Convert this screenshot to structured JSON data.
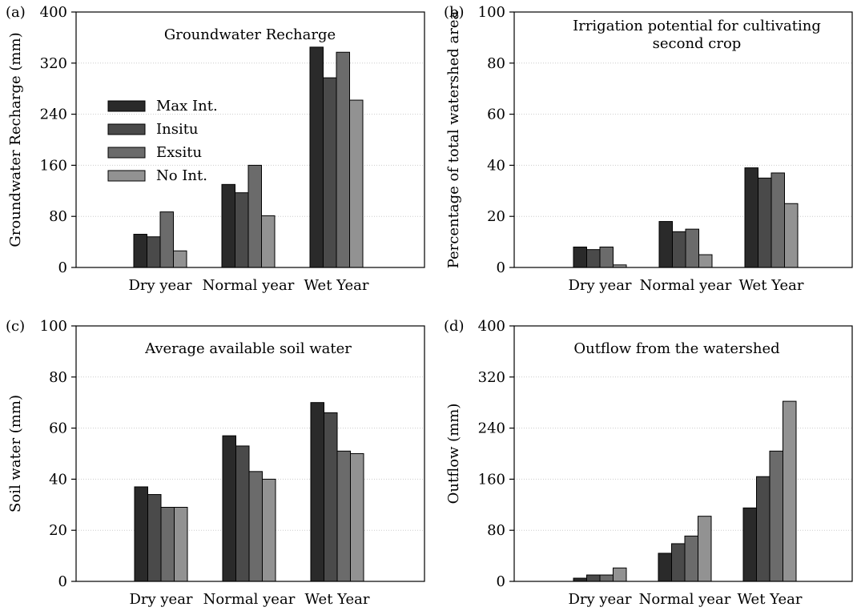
{
  "chart_data": [
    {
      "panel_label": "(a)",
      "type": "bar",
      "title": "Groundwater Recharge",
      "xlabel": "",
      "ylabel": "Groundwater Recharge (mm)",
      "ylim": [
        0,
        400
      ],
      "yticks": [
        0,
        80,
        160,
        240,
        320,
        400
      ],
      "grid": true,
      "legend": "upper-left",
      "categories": [
        "Dry year",
        "Normal year",
        "Wet Year"
      ],
      "series": [
        {
          "name": "Max Int.",
          "values": [
            52,
            130,
            345
          ]
        },
        {
          "name": "Insitu",
          "values": [
            48,
            117,
            297
          ]
        },
        {
          "name": "Exsitu",
          "values": [
            87,
            160,
            337
          ]
        },
        {
          "name": "No Int.",
          "values": [
            26,
            81,
            262
          ]
        }
      ]
    },
    {
      "panel_label": "(b)",
      "type": "bar",
      "title": "Irrigation potential for cultivating second crop",
      "xlabel": "",
      "ylabel": "Percentage of total watershed area",
      "ylim": [
        0,
        100
      ],
      "yticks": [
        0,
        20,
        40,
        60,
        80,
        100
      ],
      "grid": true,
      "legend": "none",
      "categories": [
        "Dry year",
        "Normal year",
        "Wet Year"
      ],
      "series": [
        {
          "name": "Max Int.",
          "values": [
            8,
            18,
            39
          ]
        },
        {
          "name": "Insitu",
          "values": [
            7,
            14,
            35
          ]
        },
        {
          "name": "Exsitu",
          "values": [
            8,
            15,
            37
          ]
        },
        {
          "name": "No Int.",
          "values": [
            1,
            5,
            25
          ]
        }
      ]
    },
    {
      "panel_label": "(c)",
      "type": "bar",
      "title": "Average available soil water",
      "xlabel": "",
      "ylabel": "Soil water (mm)",
      "ylim": [
        0,
        100
      ],
      "yticks": [
        0,
        20,
        40,
        60,
        80,
        100
      ],
      "grid": true,
      "legend": "none",
      "categories": [
        "Dry year",
        "Normal year",
        "Wet Year"
      ],
      "series": [
        {
          "name": "Max Int.",
          "values": [
            37,
            57,
            70
          ]
        },
        {
          "name": "Insitu",
          "values": [
            34,
            53,
            66
          ]
        },
        {
          "name": "Exsitu",
          "values": [
            29,
            43,
            51
          ]
        },
        {
          "name": "No Int.",
          "values": [
            29,
            40,
            50
          ]
        }
      ]
    },
    {
      "panel_label": "(d)",
      "type": "bar",
      "title": "Outflow from the watershed",
      "xlabel": "",
      "ylabel": "Outflow (mm)",
      "ylim": [
        0,
        400
      ],
      "yticks": [
        0,
        80,
        160,
        240,
        320,
        400
      ],
      "grid": true,
      "legend": "none",
      "categories": [
        "Dry year",
        "Normal year",
        "Wet Year"
      ],
      "series": [
        {
          "name": "Max Int.",
          "values": [
            5,
            44,
            115
          ]
        },
        {
          "name": "Insitu",
          "values": [
            10,
            59,
            164
          ]
        },
        {
          "name": "Exsitu",
          "values": [
            10,
            71,
            204
          ]
        },
        {
          "name": "No Int.",
          "values": [
            21,
            102,
            282
          ]
        }
      ]
    }
  ],
  "colors": {
    "series": [
      "#2a2a2a",
      "#4a4a4a",
      "#6b6b6b",
      "#929292"
    ],
    "grid": "#cccccc",
    "axis": "#000000"
  }
}
